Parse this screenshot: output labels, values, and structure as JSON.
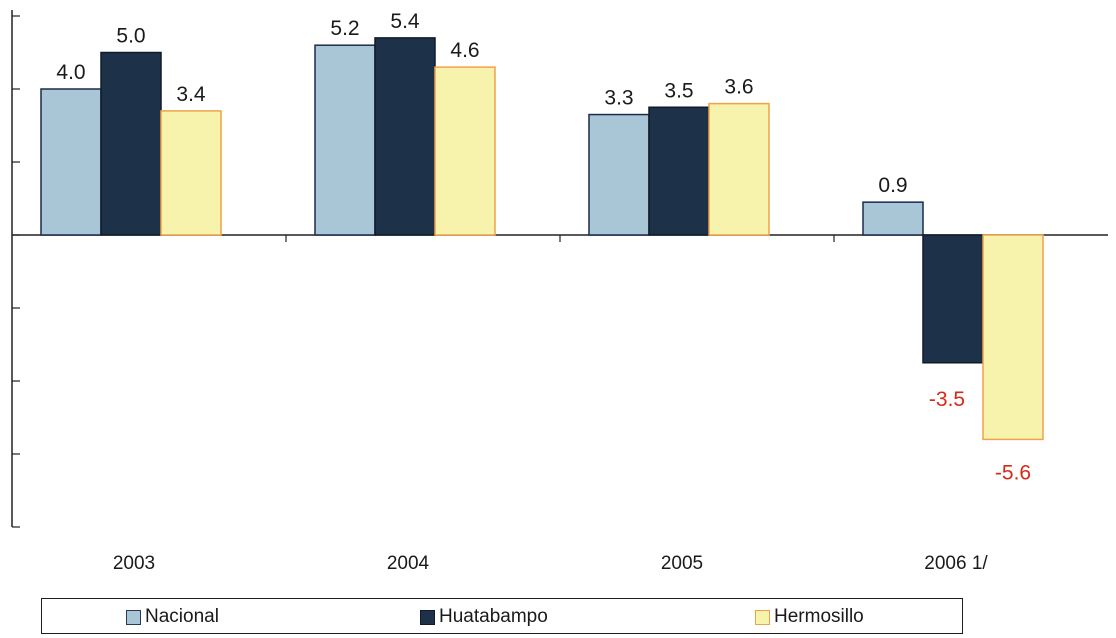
{
  "chart_data": {
    "type": "bar",
    "categories": [
      "2003",
      "2004",
      "2005",
      "2006 1/"
    ],
    "series": [
      {
        "name": "Nacional",
        "values": [
          4.0,
          5.2,
          3.3,
          0.9
        ],
        "color": "#a8c6d6",
        "stroke": "#1c2b4a"
      },
      {
        "name": "Huatabampo",
        "values": [
          5.0,
          5.4,
          3.5,
          -3.5
        ],
        "color": "#1d3148",
        "stroke": "#0f1a2a"
      },
      {
        "name": "Hermosillo",
        "values": [
          3.4,
          4.6,
          3.6,
          -5.6
        ],
        "color": "#f7f3ad",
        "stroke": "#f0a24a"
      }
    ],
    "data_labels": [
      [
        "4.0",
        "5.2",
        "3.3",
        "0.9"
      ],
      [
        "5.0",
        "5.4",
        "3.5",
        "-3.5"
      ],
      [
        "3.4",
        "4.6",
        "3.6",
        "-5.6"
      ]
    ],
    "ylim": [
      -8,
      6
    ],
    "negative_label_color": "#d42a1c",
    "positive_label_color": "#1a1a1a",
    "legend_position": "bottom"
  }
}
